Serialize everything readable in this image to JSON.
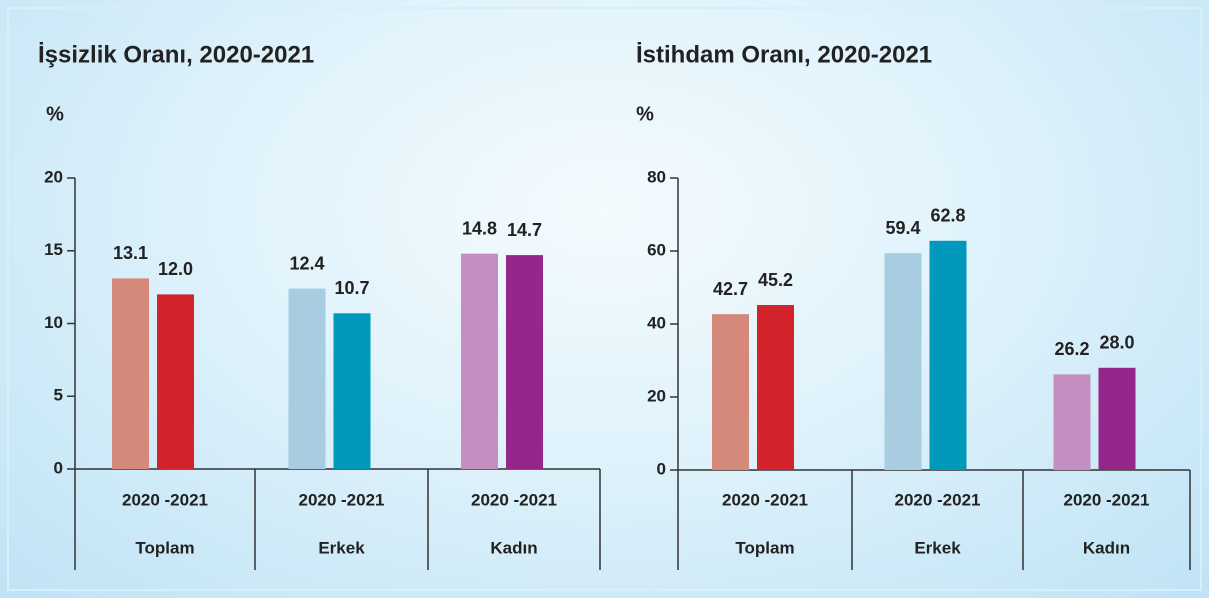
{
  "chart_data": [
    {
      "type": "bar",
      "title": "İşsizlik Oranı, 2020-2021",
      "y_label": "%",
      "categories": [
        "Toplam",
        "Erkek",
        "Kadın"
      ],
      "group_labels": [
        "2020 -2021",
        "2020 -2021",
        "2020 -2021"
      ],
      "series": [
        {
          "colors": [
            "#d4897a",
            "#a8cde0",
            "#c48fc0"
          ],
          "values": [
            13.1,
            12.4,
            14.8
          ],
          "value_labels": [
            "13.1",
            "12.4",
            "14.8"
          ]
        },
        {
          "colors": [
            "#d2232a",
            "#0099bb",
            "#95268a"
          ],
          "values": [
            12.0,
            10.7,
            14.7
          ],
          "value_labels": [
            "12.0",
            "10.7",
            "14.7"
          ]
        }
      ],
      "ylim": [
        0,
        20
      ],
      "yticks": [
        0,
        5,
        10,
        15,
        20
      ]
    },
    {
      "type": "bar",
      "title": "İstihdam Oranı, 2020-2021",
      "y_label": "%",
      "categories": [
        "Toplam",
        "Erkek",
        "Kadın"
      ],
      "group_labels": [
        "2020 -2021",
        "2020 -2021",
        "2020 -2021"
      ],
      "series": [
        {
          "colors": [
            "#d4897a",
            "#a8cde0",
            "#c48fc0"
          ],
          "values": [
            42.7,
            59.4,
            26.2
          ],
          "value_labels": [
            "42.7",
            "59.4",
            "26.2"
          ]
        },
        {
          "colors": [
            "#d2232a",
            "#0099bb",
            "#95268a"
          ],
          "values": [
            45.2,
            62.8,
            28.0
          ],
          "value_labels": [
            "45.2",
            "62.8",
            "28.0"
          ]
        }
      ],
      "ylim": [
        0,
        80
      ],
      "yticks": [
        0,
        20,
        40,
        60,
        80
      ]
    }
  ]
}
